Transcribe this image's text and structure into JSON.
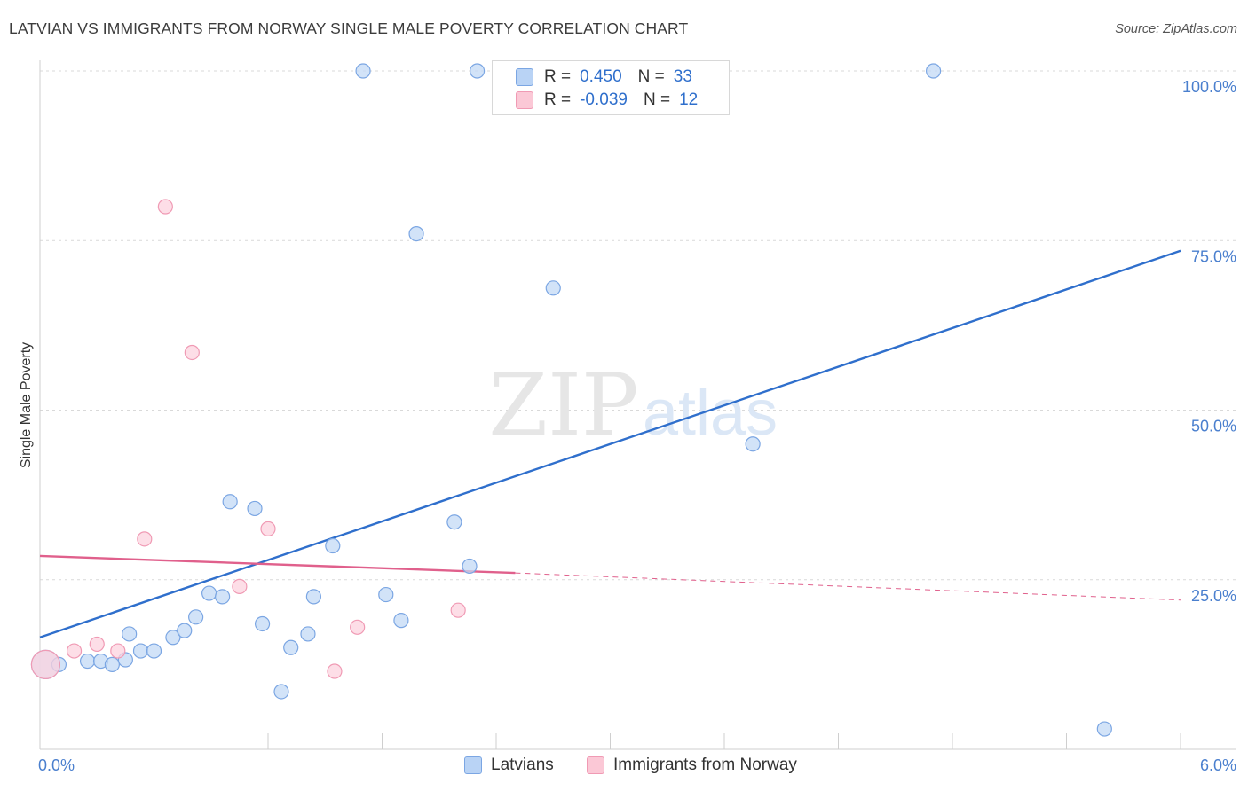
{
  "title": "LATVIAN VS IMMIGRANTS FROM NORWAY SINGLE MALE POVERTY CORRELATION CHART",
  "source": "Source: ZipAtlas.com",
  "watermark": {
    "zip": "ZIP",
    "atlas": "atlas"
  },
  "legend": {
    "rows": [
      {
        "r_label": "R =",
        "r_value": "0.450",
        "n_label": "N =",
        "n_value": "33",
        "color": "#b9d3f5"
      },
      {
        "r_label": "R =",
        "r_value": "-0.039",
        "n_label": "N =",
        "n_value": "12",
        "color": "#fbc8d6"
      }
    ]
  },
  "bottom_legend": [
    "Latvians",
    "Immigrants from Norway"
  ],
  "chart_data": {
    "type": "scatter",
    "title": "LATVIAN VS IMMIGRANTS FROM NORWAY SINGLE MALE POVERTY CORRELATION CHART",
    "xlabel": "",
    "ylabel": "Single Male Poverty",
    "xlim": [
      0,
      6
    ],
    "ylim": [
      0,
      100
    ],
    "x_tick_labels": [
      "0.0%",
      "6.0%"
    ],
    "y_tick_labels": [
      "100.0%",
      "75.0%",
      "50.0%",
      "25.0%"
    ],
    "y_ticks": [
      100,
      75,
      50,
      25
    ],
    "colors": {
      "latvians": "#7ba6e3",
      "latvians_fill": "#c3d9f6",
      "norway": "#f09ab4",
      "norway_fill": "#fcd3df",
      "blue_line": "#2f6fcc",
      "pink_line": "#e0608c"
    },
    "series": [
      {
        "name": "Latvians",
        "points": [
          {
            "x": 0.03,
            "y": 12.5,
            "big": true
          },
          {
            "x": 0.1,
            "y": 12.5
          },
          {
            "x": 0.25,
            "y": 13.0
          },
          {
            "x": 0.32,
            "y": 13.0
          },
          {
            "x": 0.38,
            "y": 12.5
          },
          {
            "x": 0.45,
            "y": 13.2
          },
          {
            "x": 0.47,
            "y": 17.0
          },
          {
            "x": 0.53,
            "y": 14.5
          },
          {
            "x": 0.6,
            "y": 14.5
          },
          {
            "x": 0.7,
            "y": 16.5
          },
          {
            "x": 0.76,
            "y": 17.5
          },
          {
            "x": 0.82,
            "y": 19.5
          },
          {
            "x": 0.89,
            "y": 23.0
          },
          {
            "x": 0.96,
            "y": 22.5
          },
          {
            "x": 1.0,
            "y": 36.5
          },
          {
            "x": 1.13,
            "y": 35.5
          },
          {
            "x": 1.17,
            "y": 18.5
          },
          {
            "x": 1.27,
            "y": 8.5
          },
          {
            "x": 1.32,
            "y": 15.0
          },
          {
            "x": 1.41,
            "y": 17.0
          },
          {
            "x": 1.44,
            "y": 22.5
          },
          {
            "x": 1.54,
            "y": 30.0
          },
          {
            "x": 1.82,
            "y": 22.8
          },
          {
            "x": 1.9,
            "y": 19.0
          },
          {
            "x": 2.18,
            "y": 33.5
          },
          {
            "x": 2.26,
            "y": 27.0
          },
          {
            "x": 2.7,
            "y": 68.0
          },
          {
            "x": 3.75,
            "y": 45.0
          },
          {
            "x": 5.6,
            "y": 3.0
          },
          {
            "x": 1.7,
            "y": 100
          },
          {
            "x": 2.3,
            "y": 100
          },
          {
            "x": 4.7,
            "y": 100
          },
          {
            "x": 1.98,
            "y": 76.0
          }
        ]
      },
      {
        "name": "Immigrants from Norway",
        "points": [
          {
            "x": 0.03,
            "y": 12.5,
            "big": true
          },
          {
            "x": 0.18,
            "y": 14.5
          },
          {
            "x": 0.3,
            "y": 15.5
          },
          {
            "x": 0.41,
            "y": 14.5
          },
          {
            "x": 0.55,
            "y": 31.0
          },
          {
            "x": 0.66,
            "y": 80.0
          },
          {
            "x": 0.8,
            "y": 58.5
          },
          {
            "x": 1.05,
            "y": 24.0
          },
          {
            "x": 1.2,
            "y": 32.5
          },
          {
            "x": 1.55,
            "y": 11.5
          },
          {
            "x": 1.67,
            "y": 18.0
          },
          {
            "x": 2.2,
            "y": 20.5
          }
        ]
      }
    ],
    "trendlines": [
      {
        "name": "Latvians",
        "x": [
          0,
          6
        ],
        "y": [
          16.5,
          73.5
        ],
        "style": "solid"
      },
      {
        "name": "Immigrants from Norway",
        "x": [
          0,
          2.5
        ],
        "y": [
          28.5,
          26.0
        ],
        "style": "solid"
      },
      {
        "name": "Immigrants from Norway (extended)",
        "x": [
          2.5,
          6
        ],
        "y": [
          26.0,
          22.0
        ],
        "style": "dashed"
      }
    ]
  }
}
